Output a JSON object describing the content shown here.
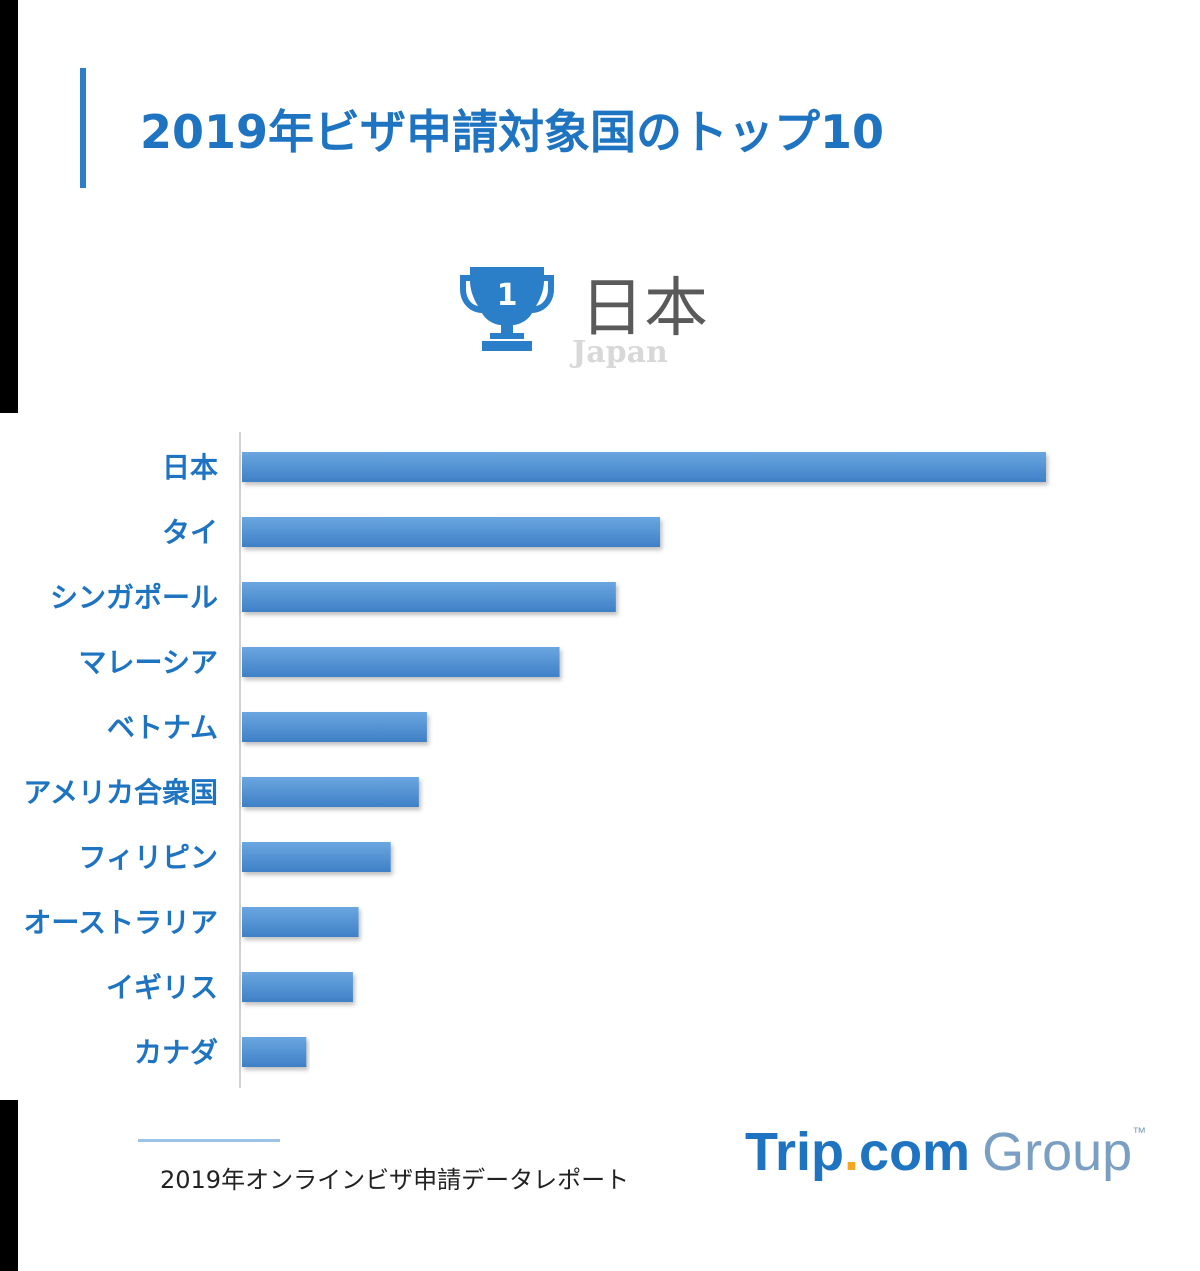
{
  "title": "2019年ビザ申請対象国のトップ10",
  "winner": {
    "rank": "1",
    "name": "日本",
    "name_en": "Japan"
  },
  "colors": {
    "bar": "#4f8fd4",
    "label": "#1f74c2",
    "title": "#1f74c2"
  },
  "chart_data": {
    "type": "bar",
    "orientation": "horizontal",
    "categories": [
      "日本",
      "タイ",
      "シンガポール",
      "マレーシア",
      "ベトナム",
      "アメリカ合衆国",
      "フィリピン",
      "オーストラリア",
      "イギリス",
      "カナダ"
    ],
    "values": [
      100,
      52,
      46.5,
      39.5,
      23,
      22,
      18.5,
      14.5,
      13.8,
      8
    ],
    "value_axis_labels": "none",
    "grid": false,
    "legend": "none"
  },
  "source": "2019年オンラインビザ申請データレポート",
  "logo": {
    "trip": "Trip",
    "dot": ".",
    "com": "com",
    "group": "Group",
    "tm": "™"
  }
}
